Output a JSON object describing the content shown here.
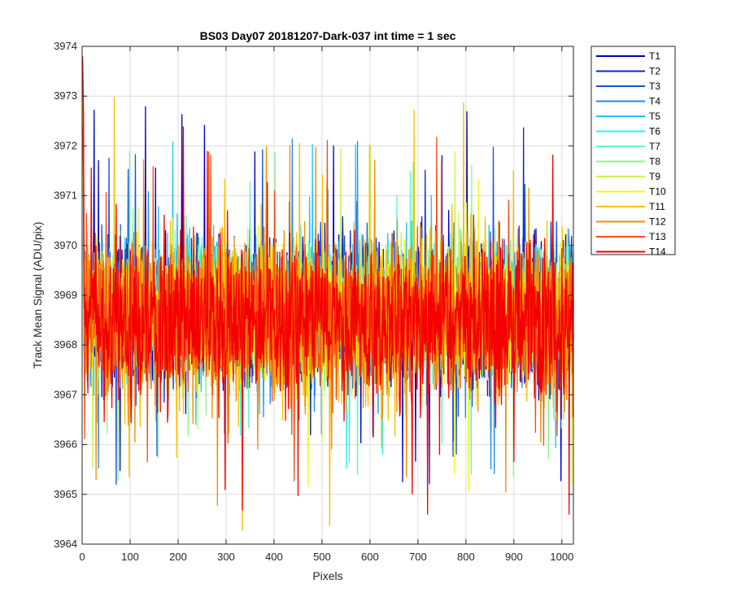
{
  "chart_data": {
    "type": "line",
    "title": "BS03 Day07 20181207-Dark-037 int time = 1 sec",
    "xlabel": "Pixels",
    "ylabel": "Track Mean Signal (ADU/pix)",
    "xlim": [
      0,
      1024
    ],
    "ylim": [
      3964,
      3974
    ],
    "xticks": [
      "0",
      "100",
      "200",
      "300",
      "400",
      "500",
      "600",
      "700",
      "800",
      "900",
      "1000"
    ],
    "yticks": [
      "3964",
      "3965",
      "3966",
      "3967",
      "3968",
      "3969",
      "3970",
      "3971",
      "3972",
      "3973",
      "3974"
    ],
    "grid": true,
    "legend_position": "outside-right-top",
    "x_range": [
      1,
      1024
    ],
    "series": [
      {
        "name": "T1",
        "color": "#0000bf",
        "center": 3968.7,
        "min": 3964.6,
        "max": 3972.9
      },
      {
        "name": "T2",
        "color": "#0a28c8",
        "center": 3968.7,
        "min": 3965.0,
        "max": 3972.5
      },
      {
        "name": "T3",
        "color": "#1450dc",
        "center": 3968.7,
        "min": 3965.1,
        "max": 3972.4
      },
      {
        "name": "T4",
        "color": "#1e8cf0",
        "center": 3968.7,
        "min": 3965.3,
        "max": 3972.3
      },
      {
        "name": "T5",
        "color": "#22c3f5",
        "center": 3968.7,
        "min": 3965.2,
        "max": 3972.2
      },
      {
        "name": "T6",
        "color": "#2cf0f0",
        "center": 3968.7,
        "min": 3965.3,
        "max": 3972.1
      },
      {
        "name": "T7",
        "color": "#60f5c8",
        "center": 3968.6,
        "min": 3965.4,
        "max": 3972.0
      },
      {
        "name": "T8",
        "color": "#8cf58c",
        "center": 3968.6,
        "min": 3965.0,
        "max": 3971.9
      },
      {
        "name": "T9",
        "color": "#c8f550",
        "center": 3968.6,
        "min": 3965.0,
        "max": 3972.0
      },
      {
        "name": "T10",
        "color": "#f5f514",
        "center": 3968.6,
        "min": 3965.0,
        "max": 3972.1
      },
      {
        "name": "T11",
        "color": "#f5c000",
        "center": 3968.6,
        "min": 3964.2,
        "max": 3973.1
      },
      {
        "name": "T12",
        "color": "#f58c00",
        "center": 3968.5,
        "min": 3964.7,
        "max": 3972.8
      },
      {
        "name": "T13",
        "color": "#f55014",
        "center": 3968.5,
        "min": 3964.9,
        "max": 3972.4
      },
      {
        "name": "T14",
        "color": "#f50000",
        "center": 3968.5,
        "min": 3964.6,
        "max": 3973.8
      }
    ]
  }
}
